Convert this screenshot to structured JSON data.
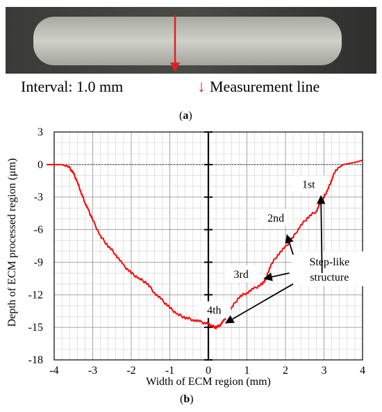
{
  "panel_a": {
    "interval_label": "Interval: 1.0 mm",
    "measurement_line_label": "Measurement line",
    "caption_letter": "a",
    "arrow_color": "#e02020"
  },
  "panel_b": {
    "caption_letter": "b"
  },
  "chart_data": {
    "type": "line",
    "xlabel": "Width of ECM region (mm)",
    "ylabel": "Depth of ECM processed region (μm)",
    "xlim": [
      -4,
      4
    ],
    "ylim": [
      -18,
      3
    ],
    "x_ticks": [
      -4,
      -3,
      -2,
      -1,
      0,
      1,
      2,
      3,
      4
    ],
    "y_ticks": [
      3,
      0,
      -3,
      -6,
      -9,
      -12,
      -15,
      -18
    ],
    "grid": true,
    "series": [
      {
        "color": "#ff0000",
        "x": [
          -4.2,
          -3.8,
          -3.6,
          -3.5,
          -3.4,
          -3.3,
          -3.2,
          -3.1,
          -3.0,
          -2.8,
          -2.6,
          -2.4,
          -2.2,
          -2.0,
          -1.8,
          -1.6,
          -1.4,
          -1.2,
          -1.0,
          -0.8,
          -0.6,
          -0.4,
          -0.2,
          0.0,
          0.1,
          0.2,
          0.3,
          0.4,
          0.5,
          0.6,
          0.8,
          1.0,
          1.2,
          1.4,
          1.5,
          1.6,
          1.8,
          2.0,
          2.2,
          2.4,
          2.6,
          2.8,
          2.9,
          3.0,
          3.1,
          3.2,
          3.3,
          3.5,
          3.8,
          4.0
        ],
        "y": [
          0.0,
          0.0,
          -0.3,
          -0.8,
          -1.6,
          -2.6,
          -3.5,
          -4.3,
          -5.1,
          -6.6,
          -7.5,
          -8.3,
          -9.3,
          -10.0,
          -10.5,
          -10.9,
          -11.8,
          -12.5,
          -13.2,
          -13.8,
          -14.1,
          -14.3,
          -14.5,
          -14.7,
          -14.9,
          -15.0,
          -14.8,
          -14.4,
          -13.8,
          -13.2,
          -12.2,
          -11.8,
          -11.4,
          -11.0,
          -10.5,
          -9.4,
          -8.3,
          -7.6,
          -6.7,
          -5.6,
          -4.8,
          -4.3,
          -3.6,
          -3.0,
          -2.3,
          -1.4,
          -0.5,
          0.0,
          0.2,
          0.4
        ]
      }
    ],
    "annotations": {
      "step_labels": [
        "1st",
        "2nd",
        "3rd",
        "4th"
      ],
      "callout": "Step-like structure"
    }
  }
}
